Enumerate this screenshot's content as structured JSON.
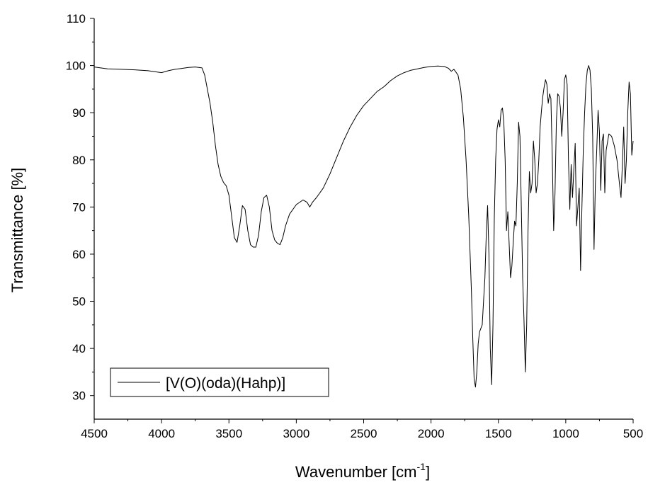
{
  "chart_data": {
    "type": "line",
    "title": "",
    "xlabel": "Wavenumber [cm",
    "xlabel_sup": "-1",
    "xlabel_suffix": "]",
    "ylabel": "Transmittance [%]",
    "xlim": [
      4500,
      500
    ],
    "ylim": [
      25,
      110
    ],
    "x_reversed": true,
    "xticks": [
      4500,
      4000,
      3500,
      3000,
      2500,
      2000,
      1500,
      1000,
      500
    ],
    "yticks": [
      30,
      40,
      50,
      60,
      70,
      80,
      90,
      100,
      110
    ],
    "grid": false,
    "legend_position": "bottom-left",
    "line_color": "#000000",
    "series": [
      {
        "name": "[V(O)(oda)(Hahp)]",
        "x": [
          4500,
          4400,
          4300,
          4200,
          4100,
          4000,
          3950,
          3900,
          3850,
          3800,
          3750,
          3700,
          3680,
          3660,
          3640,
          3620,
          3600,
          3580,
          3560,
          3540,
          3520,
          3500,
          3480,
          3460,
          3440,
          3420,
          3400,
          3380,
          3360,
          3340,
          3320,
          3300,
          3280,
          3260,
          3240,
          3220,
          3200,
          3180,
          3160,
          3140,
          3120,
          3100,
          3080,
          3050,
          3000,
          2950,
          2920,
          2900,
          2880,
          2850,
          2800,
          2750,
          2700,
          2650,
          2600,
          2550,
          2500,
          2450,
          2400,
          2350,
          2300,
          2250,
          2200,
          2150,
          2100,
          2050,
          2000,
          1950,
          1900,
          1870,
          1850,
          1830,
          1800,
          1780,
          1760,
          1740,
          1720,
          1700,
          1690,
          1680,
          1670,
          1660,
          1650,
          1640,
          1620,
          1600,
          1590,
          1580,
          1570,
          1560,
          1550,
          1540,
          1530,
          1520,
          1510,
          1500,
          1490,
          1480,
          1470,
          1460,
          1450,
          1440,
          1430,
          1420,
          1410,
          1400,
          1390,
          1380,
          1370,
          1360,
          1350,
          1340,
          1330,
          1320,
          1310,
          1300,
          1290,
          1280,
          1270,
          1260,
          1250,
          1240,
          1230,
          1220,
          1210,
          1200,
          1190,
          1180,
          1170,
          1160,
          1150,
          1140,
          1130,
          1120,
          1110,
          1100,
          1090,
          1080,
          1070,
          1060,
          1050,
          1040,
          1030,
          1020,
          1010,
          1000,
          990,
          980,
          970,
          960,
          950,
          940,
          930,
          920,
          910,
          900,
          890,
          880,
          870,
          860,
          850,
          840,
          830,
          820,
          810,
          800,
          790,
          780,
          770,
          760,
          750,
          740,
          730,
          720,
          710,
          700,
          680,
          660,
          640,
          620,
          600,
          590,
          580,
          570,
          560,
          550,
          540,
          530,
          520,
          510,
          500
        ],
        "y": [
          99.7,
          99.3,
          99.2,
          99.1,
          98.9,
          98.5,
          98.9,
          99.2,
          99.4,
          99.6,
          99.7,
          99.5,
          98.0,
          95.0,
          92.0,
          88.0,
          83.0,
          79.0,
          76.5,
          75.2,
          74.5,
          72.5,
          68.0,
          63.5,
          62.5,
          66.0,
          70.3,
          69.5,
          65.0,
          62.0,
          61.5,
          61.5,
          64.0,
          69.0,
          72.0,
          72.5,
          70.0,
          65.0,
          63.0,
          62.3,
          62.0,
          63.5,
          66.0,
          68.5,
          70.5,
          71.5,
          71.0,
          70.0,
          71.0,
          72.0,
          74.0,
          77.0,
          80.5,
          84.0,
          87.0,
          89.5,
          91.5,
          93.0,
          94.5,
          95.5,
          96.8,
          97.8,
          98.5,
          99.0,
          99.3,
          99.6,
          99.8,
          99.9,
          99.8,
          99.4,
          98.8,
          99.2,
          98.0,
          95.0,
          89.0,
          80.0,
          68.0,
          52.0,
          42.0,
          33.5,
          31.8,
          35.0,
          41.0,
          43.5,
          45.0,
          55.0,
          64.0,
          70.3,
          60.0,
          40.0,
          32.3,
          45.0,
          68.0,
          80.0,
          86.5,
          88.5,
          87.0,
          90.5,
          91.0,
          88.0,
          80.0,
          65.0,
          69.0,
          62.0,
          55.0,
          57.5,
          62.5,
          67.0,
          66.0,
          75.0,
          88.0,
          85.0,
          70.0,
          55.0,
          46.0,
          35.0,
          45.0,
          65.0,
          77.5,
          73.0,
          75.0,
          84.0,
          80.0,
          73.0,
          75.0,
          80.0,
          87.0,
          90.5,
          93.5,
          95.5,
          97.0,
          96.0,
          92.0,
          94.0,
          93.0,
          80.0,
          65.0,
          73.0,
          88.0,
          94.0,
          93.5,
          91.0,
          85.0,
          90.0,
          97.0,
          98.0,
          96.0,
          80.0,
          69.5,
          79.0,
          72.0,
          78.0,
          83.5,
          66.0,
          70.0,
          74.0,
          56.5,
          70.0,
          82.0,
          90.0,
          96.0,
          99.0,
          100.0,
          99.0,
          95.0,
          85.0,
          61.0,
          75.0,
          82.0,
          90.5,
          86.0,
          73.5,
          84.0,
          85.5,
          73.0,
          82.0,
          85.5,
          85.0,
          83.0,
          80.0,
          74.5,
          72.0,
          79.0,
          87.0,
          75.0,
          80.0,
          90.0,
          96.5,
          94.0,
          81.0,
          84.0
        ]
      }
    ]
  }
}
